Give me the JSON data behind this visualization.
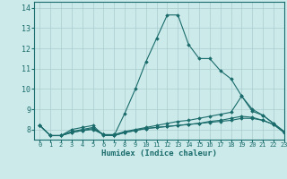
{
  "xlabel": "Humidex (Indice chaleur)",
  "bg_color": "#cceaea",
  "grid_color": "#aacccc",
  "line_color": "#1a6b6b",
  "xlim": [
    -0.5,
    23
  ],
  "ylim": [
    7.5,
    14.3
  ],
  "xticks": [
    0,
    1,
    2,
    3,
    4,
    5,
    6,
    7,
    8,
    9,
    10,
    11,
    12,
    13,
    14,
    15,
    16,
    17,
    18,
    19,
    20,
    21,
    22,
    23
  ],
  "yticks": [
    8,
    9,
    10,
    11,
    12,
    13,
    14
  ],
  "lines": [
    {
      "x": [
        0,
        1,
        2,
        3,
        4,
        5,
        6,
        7,
        8,
        9,
        10,
        11,
        12,
        13,
        14,
        15,
        16,
        17,
        18,
        19,
        20,
        21,
        22,
        23
      ],
      "y": [
        8.2,
        7.7,
        7.7,
        8.0,
        8.1,
        8.2,
        7.7,
        7.7,
        8.8,
        10.0,
        11.35,
        12.5,
        13.65,
        13.65,
        12.2,
        11.5,
        11.5,
        10.9,
        10.5,
        9.65,
        8.9,
        8.7,
        8.3,
        7.9
      ]
    },
    {
      "x": [
        0,
        1,
        2,
        3,
        4,
        5,
        6,
        7,
        8,
        9,
        10,
        11,
        12,
        13,
        14,
        15,
        16,
        17,
        18,
        19,
        20,
        21,
        22,
        23
      ],
      "y": [
        8.2,
        7.7,
        7.7,
        7.9,
        8.0,
        8.1,
        7.75,
        7.75,
        7.9,
        8.0,
        8.1,
        8.2,
        8.3,
        8.4,
        8.45,
        8.55,
        8.65,
        8.75,
        8.85,
        9.65,
        9.0,
        8.7,
        8.3,
        7.9
      ]
    },
    {
      "x": [
        0,
        1,
        2,
        3,
        4,
        5,
        6,
        7,
        8,
        9,
        10,
        11,
        12,
        13,
        14,
        15,
        16,
        17,
        18,
        19,
        20,
        21,
        22,
        23
      ],
      "y": [
        8.2,
        7.7,
        7.7,
        7.85,
        7.95,
        8.0,
        7.75,
        7.7,
        7.85,
        7.95,
        8.05,
        8.1,
        8.15,
        8.2,
        8.25,
        8.3,
        8.35,
        8.4,
        8.45,
        8.55,
        8.55,
        8.45,
        8.25,
        7.85
      ]
    },
    {
      "x": [
        0,
        1,
        2,
        3,
        4,
        5,
        6,
        7,
        8,
        9,
        10,
        11,
        12,
        13,
        14,
        15,
        16,
        17,
        18,
        19,
        20,
        21,
        22,
        23
      ],
      "y": [
        8.2,
        7.7,
        7.7,
        7.85,
        7.95,
        8.05,
        7.75,
        7.7,
        7.85,
        7.95,
        8.05,
        8.1,
        8.15,
        8.2,
        8.25,
        8.3,
        8.4,
        8.45,
        8.55,
        8.65,
        8.6,
        8.45,
        8.25,
        7.85
      ]
    }
  ]
}
